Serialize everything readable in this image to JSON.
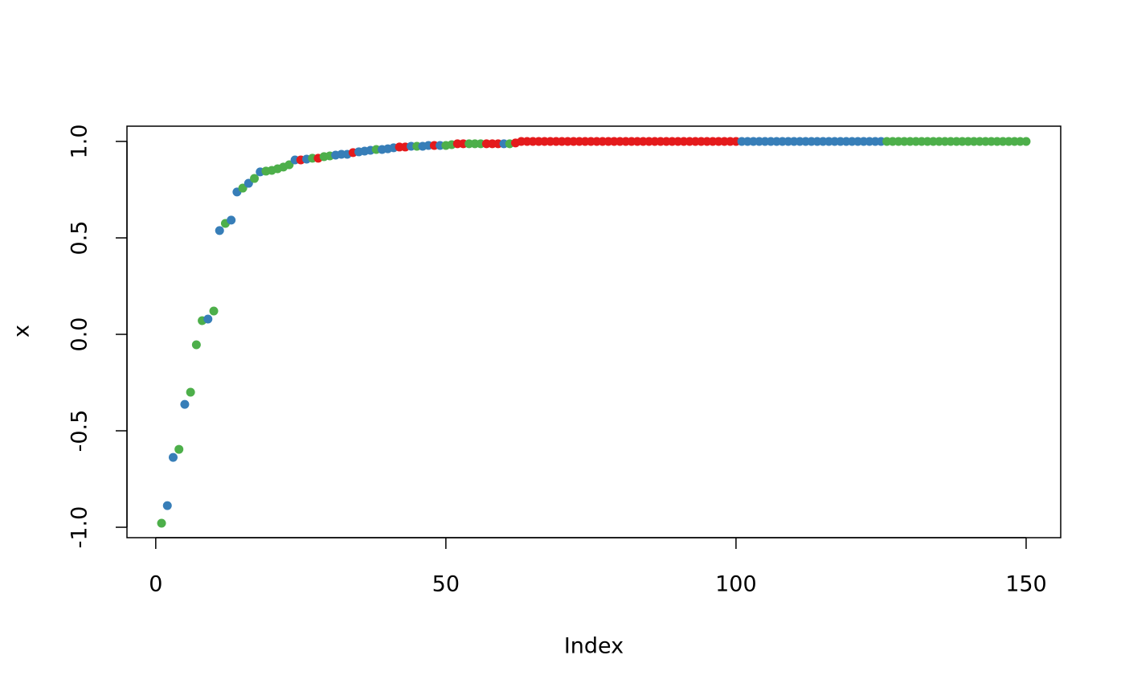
{
  "chart_data": {
    "type": "scatter",
    "x_label": "Index",
    "y_label": "x",
    "x": [
      1,
      2,
      3,
      4,
      5,
      6,
      7,
      8,
      9,
      10,
      11,
      12,
      13,
      14,
      15,
      16,
      17,
      18,
      19,
      20,
      21,
      22,
      23,
      24,
      25,
      26,
      27,
      28,
      29,
      30,
      31,
      32,
      33,
      34,
      35,
      36,
      37,
      38,
      39,
      40,
      41,
      42,
      43,
      44,
      45,
      46,
      47,
      48,
      49,
      50,
      51,
      52,
      53,
      54,
      55,
      56,
      57,
      58,
      59,
      60,
      61,
      62,
      63,
      64,
      65,
      66,
      67,
      68,
      69,
      70,
      71,
      72,
      73,
      74,
      75,
      76,
      77,
      78,
      79,
      80,
      81,
      82,
      83,
      84,
      85,
      86,
      87,
      88,
      89,
      90,
      91,
      92,
      93,
      94,
      95,
      96,
      97,
      98,
      99,
      100,
      101,
      102,
      103,
      104,
      105,
      106,
      107,
      108,
      109,
      110,
      111,
      112,
      113,
      114,
      115,
      116,
      117,
      118,
      119,
      120,
      121,
      122,
      123,
      124,
      125,
      126,
      127,
      128,
      129,
      130,
      131,
      132,
      133,
      134,
      135,
      136,
      137,
      138,
      139,
      140,
      141,
      142,
      143,
      144,
      145,
      146,
      147,
      148,
      149,
      150
    ],
    "values": [
      -0.979,
      -0.888,
      -0.638,
      -0.596,
      -0.363,
      -0.3,
      -0.054,
      0.071,
      0.079,
      0.121,
      0.538,
      0.575,
      0.592,
      0.738,
      0.758,
      0.783,
      0.808,
      0.842,
      0.846,
      0.85,
      0.858,
      0.867,
      0.879,
      0.904,
      0.904,
      0.908,
      0.913,
      0.913,
      0.921,
      0.925,
      0.929,
      0.933,
      0.933,
      0.942,
      0.946,
      0.95,
      0.954,
      0.958,
      0.958,
      0.962,
      0.967,
      0.971,
      0.971,
      0.975,
      0.975,
      0.975,
      0.979,
      0.979,
      0.979,
      0.979,
      0.983,
      0.988,
      0.988,
      0.988,
      0.988,
      0.988,
      0.988,
      0.988,
      0.988,
      0.988,
      0.988,
      0.992,
      1,
      1,
      1,
      1,
      1,
      1,
      1,
      1,
      1,
      1,
      1,
      1,
      1,
      1,
      1,
      1,
      1,
      1,
      1,
      1,
      1,
      1,
      1,
      1,
      1,
      1,
      1,
      1,
      1,
      1,
      1,
      1,
      1,
      1,
      1,
      1,
      1,
      1,
      1,
      1,
      1,
      1,
      1,
      1,
      1,
      1,
      1,
      1,
      1,
      1,
      1,
      1,
      1,
      1,
      1,
      1,
      1,
      1,
      1,
      1,
      1,
      1,
      1,
      1,
      1,
      1,
      1,
      1,
      1,
      1,
      1,
      1,
      1,
      1,
      1,
      1,
      1,
      1,
      1,
      1,
      1,
      1,
      1,
      1,
      1,
      1,
      1,
      1
    ],
    "colors": [
      "#4daf4a",
      "#377eb8",
      "#377eb8",
      "#4daf4a",
      "#377eb8",
      "#4daf4a",
      "#4daf4a",
      "#4daf4a",
      "#377eb8",
      "#4daf4a",
      "#377eb8",
      "#4daf4a",
      "#377eb8",
      "#377eb8",
      "#4daf4a",
      "#377eb8",
      "#4daf4a",
      "#377eb8",
      "#4daf4a",
      "#4daf4a",
      "#4daf4a",
      "#4daf4a",
      "#4daf4a",
      "#377eb8",
      "#e41a1c",
      "#377eb8",
      "#4daf4a",
      "#e41a1c",
      "#4daf4a",
      "#4daf4a",
      "#377eb8",
      "#377eb8",
      "#377eb8",
      "#e41a1c",
      "#377eb8",
      "#377eb8",
      "#377eb8",
      "#4daf4a",
      "#377eb8",
      "#377eb8",
      "#377eb8",
      "#e41a1c",
      "#e41a1c",
      "#377eb8",
      "#4daf4a",
      "#377eb8",
      "#377eb8",
      "#e41a1c",
      "#377eb8",
      "#4daf4a",
      "#4daf4a",
      "#e41a1c",
      "#e41a1c",
      "#4daf4a",
      "#4daf4a",
      "#4daf4a",
      "#e41a1c",
      "#e41a1c",
      "#e41a1c",
      "#377eb8",
      "#4daf4a",
      "#e41a1c",
      "#e41a1c",
      "#e41a1c",
      "#e41a1c",
      "#e41a1c",
      "#e41a1c",
      "#e41a1c",
      "#e41a1c",
      "#e41a1c",
      "#e41a1c",
      "#e41a1c",
      "#e41a1c",
      "#e41a1c",
      "#e41a1c",
      "#e41a1c",
      "#e41a1c",
      "#e41a1c",
      "#e41a1c",
      "#e41a1c",
      "#e41a1c",
      "#e41a1c",
      "#e41a1c",
      "#e41a1c",
      "#e41a1c",
      "#e41a1c",
      "#e41a1c",
      "#e41a1c",
      "#e41a1c",
      "#e41a1c",
      "#e41a1c",
      "#e41a1c",
      "#e41a1c",
      "#e41a1c",
      "#e41a1c",
      "#e41a1c",
      "#e41a1c",
      "#e41a1c",
      "#e41a1c",
      "#e41a1c",
      "#377eb8",
      "#377eb8",
      "#377eb8",
      "#377eb8",
      "#377eb8",
      "#377eb8",
      "#377eb8",
      "#377eb8",
      "#377eb8",
      "#377eb8",
      "#377eb8",
      "#377eb8",
      "#377eb8",
      "#377eb8",
      "#377eb8",
      "#377eb8",
      "#377eb8",
      "#377eb8",
      "#377eb8",
      "#377eb8",
      "#377eb8",
      "#377eb8",
      "#377eb8",
      "#377eb8",
      "#377eb8",
      "#4daf4a",
      "#4daf4a",
      "#4daf4a",
      "#4daf4a",
      "#4daf4a",
      "#4daf4a",
      "#4daf4a",
      "#4daf4a",
      "#4daf4a",
      "#4daf4a",
      "#4daf4a",
      "#4daf4a",
      "#4daf4a",
      "#4daf4a",
      "#4daf4a",
      "#4daf4a",
      "#4daf4a",
      "#4daf4a",
      "#4daf4a",
      "#4daf4a",
      "#4daf4a",
      "#4daf4a",
      "#4daf4a",
      "#4daf4a",
      "#4daf4a"
    ],
    "xlim": [
      -4.96,
      155.96
    ],
    "xticks": [
      0,
      50,
      100,
      150
    ],
    "ylim": [
      -1.054,
      1.079
    ],
    "yticks": [
      {
        "value": -1,
        "label": "-1.0"
      },
      {
        "value": -0.5,
        "label": "-0.5"
      },
      {
        "value": 0,
        "label": "0.0"
      },
      {
        "value": 0.5,
        "label": "0.5"
      },
      {
        "value": 1,
        "label": "1.0"
      }
    ],
    "grid": false
  }
}
